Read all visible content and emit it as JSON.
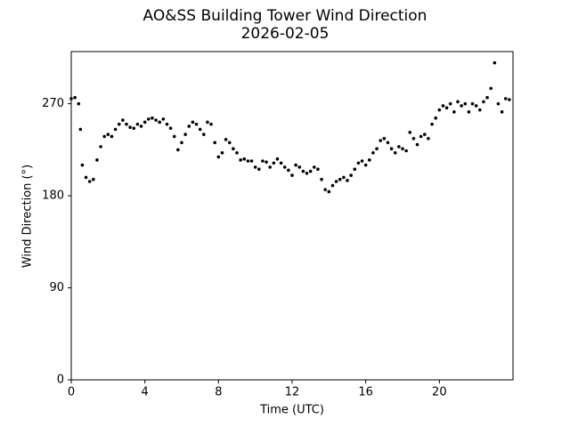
{
  "chart_data": {
    "type": "scatter",
    "title": "AO&SS Building Tower Wind Direction",
    "subtitle": "2026-02-05",
    "x_label": "Time (UTC)",
    "y_label": "Wind Direction (°)",
    "color": "#000000",
    "xlim": [
      0,
      24
    ],
    "xticks": [
      0,
      4,
      8,
      12,
      16,
      20
    ],
    "ylim": [
      0,
      321
    ],
    "yticks": [
      0,
      90,
      180,
      270
    ],
    "x": [
      0,
      0.2,
      0.4,
      0.5,
      0.6,
      0.8,
      1.0,
      1.2,
      1.4,
      1.6,
      1.8,
      2.0,
      2.2,
      2.4,
      2.6,
      2.8,
      3.0,
      3.2,
      3.4,
      3.6,
      3.8,
      4.0,
      4.2,
      4.4,
      4.6,
      4.8,
      5.0,
      5.2,
      5.4,
      5.6,
      5.8,
      6.0,
      6.2,
      6.4,
      6.6,
      6.8,
      7.0,
      7.2,
      7.4,
      7.6,
      7.8,
      8.0,
      8.2,
      8.4,
      8.6,
      8.8,
      9.0,
      9.2,
      9.4,
      9.6,
      9.8,
      10.0,
      10.2,
      10.4,
      10.6,
      10.8,
      11.0,
      11.2,
      11.4,
      11.6,
      11.8,
      12.0,
      12.2,
      12.4,
      12.6,
      12.8,
      13.0,
      13.2,
      13.4,
      13.6,
      13.8,
      14.0,
      14.2,
      14.4,
      14.6,
      14.8,
      15.0,
      15.2,
      15.4,
      15.6,
      15.8,
      16.0,
      16.2,
      16.4,
      16.6,
      16.8,
      17.0,
      17.2,
      17.4,
      17.6,
      17.8,
      18.0,
      18.2,
      18.4,
      18.6,
      18.8,
      19.0,
      19.2,
      19.4,
      19.6,
      19.8,
      20.0,
      20.2,
      20.4,
      20.6,
      20.8,
      21.0,
      21.2,
      21.4,
      21.6,
      21.8,
      22.0,
      22.2,
      22.4,
      22.6,
      22.8,
      23.0,
      23.2,
      23.4,
      23.6,
      23.8
    ],
    "values": [
      275,
      276,
      270,
      245,
      210,
      198,
      194,
      196,
      215,
      228,
      238,
      240,
      238,
      245,
      250,
      254,
      250,
      247,
      246,
      250,
      248,
      252,
      255,
      256,
      254,
      252,
      255,
      250,
      246,
      238,
      225,
      232,
      240,
      248,
      252,
      250,
      245,
      240,
      252,
      250,
      232,
      218,
      222,
      235,
      232,
      226,
      222,
      215,
      216,
      214,
      214,
      208,
      206,
      214,
      213,
      208,
      212,
      216,
      212,
      208,
      205,
      200,
      210,
      208,
      204,
      202,
      204,
      208,
      206,
      196,
      186,
      184,
      190,
      194,
      196,
      198,
      195,
      200,
      206,
      212,
      214,
      210,
      215,
      222,
      226,
      234,
      236,
      232,
      226,
      222,
      228,
      226,
      224,
      242,
      236,
      230,
      238,
      240,
      236,
      250,
      256,
      264,
      268,
      266,
      270,
      262,
      272,
      268,
      270,
      262,
      270,
      268,
      264,
      272,
      276,
      285,
      310,
      270,
      262,
      275,
      274
    ]
  }
}
